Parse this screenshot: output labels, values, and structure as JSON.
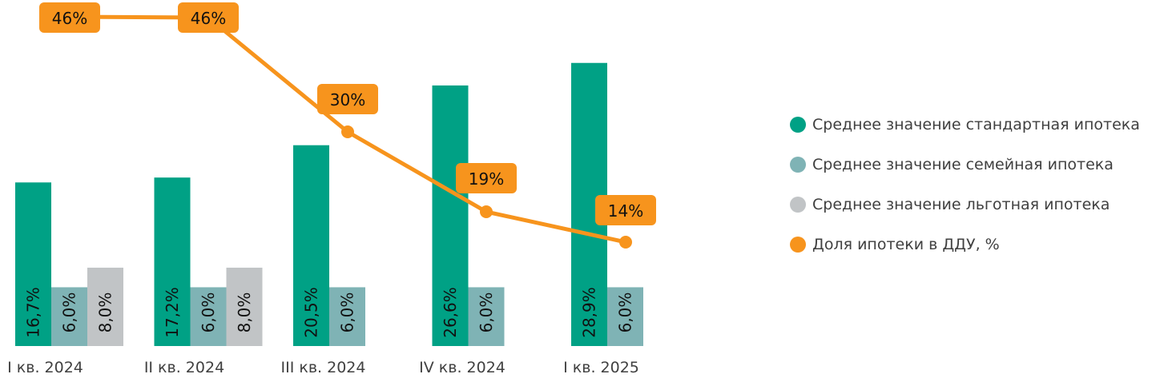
{
  "chart_data": {
    "type": "bar+line",
    "categories": [
      "I кв. 2024",
      "II кв. 2024",
      "III кв. 2024",
      "IV кв. 2024",
      "I кв. 2025"
    ],
    "series": [
      {
        "name": "Среднее значение стандартная ипотека",
        "color": "#00a185",
        "values": [
          16.7,
          17.2,
          20.5,
          26.6,
          28.9
        ],
        "labels": [
          "16,7%",
          "17,2%",
          "20,5%",
          "26,6%",
          "28,9%"
        ]
      },
      {
        "name": "Среднее значение семейная ипотека",
        "color": "#7fb3b5",
        "values": [
          6.0,
          6.0,
          6.0,
          6.0,
          6.0
        ],
        "labels": [
          "6,0%",
          "6,0%",
          "6,0%",
          "6,0%",
          "6,0%"
        ]
      },
      {
        "name": "Среднее значение льготная ипотека",
        "color": "#c1c4c6",
        "values": [
          8.0,
          8.0,
          null,
          null,
          null
        ],
        "labels": [
          "8,0%",
          "8,0%",
          "",
          "",
          ""
        ]
      }
    ],
    "line": {
      "name": "Доля ипотеки в ДДУ, %",
      "color": "#f7941d",
      "values": [
        46,
        46,
        30,
        19,
        14
      ],
      "labels": [
        "46%",
        "46%",
        "30%",
        "19%",
        "14%"
      ]
    },
    "ylim_bars": [
      0,
      31
    ],
    "ylim_line": [
      0,
      47
    ],
    "legend": "right"
  }
}
